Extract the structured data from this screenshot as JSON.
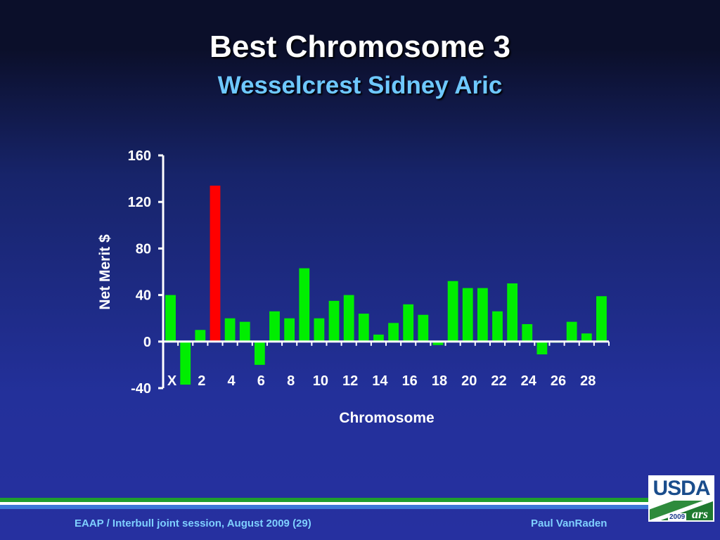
{
  "slide": {
    "title": "Best Chromosome 3",
    "subtitle": "Wesselcrest Sidney Aric",
    "footer_left": "EAAP / Interbull joint session, August 2009 (29)",
    "footer_right": "Paul VanRaden"
  },
  "logo": {
    "text": "USDA",
    "year": "2009",
    "mark": "ars"
  },
  "colors": {
    "bar": "#00ee00",
    "highlight": "#ff0000",
    "stripe_green": "#1e9e2e",
    "stripe_white": "#ffffff",
    "stripe_blue": "#3c78d8"
  },
  "chart_data": {
    "type": "bar",
    "xlabel": "Chromosome",
    "ylabel": "Net Merit $",
    "ylim": [
      -40,
      160
    ],
    "yticks": [
      -40,
      0,
      40,
      80,
      120,
      160
    ],
    "categories": [
      "X",
      "1",
      "2",
      "3",
      "4",
      "5",
      "6",
      "7",
      "8",
      "9",
      "10",
      "11",
      "12",
      "13",
      "14",
      "15",
      "16",
      "17",
      "18",
      "19",
      "20",
      "21",
      "22",
      "23",
      "24",
      "25",
      "26",
      "27",
      "28",
      "29"
    ],
    "x_tick_labels": [
      "X",
      "2",
      "4",
      "6",
      "8",
      "10",
      "12",
      "14",
      "16",
      "18",
      "20",
      "22",
      "24",
      "26",
      "28"
    ],
    "values": [
      40,
      -37,
      10,
      134,
      20,
      17,
      -20,
      26,
      20,
      63,
      20,
      35,
      40,
      24,
      6,
      16,
      32,
      23,
      -3,
      52,
      46,
      46,
      26,
      50,
      15,
      -11,
      0,
      17,
      7,
      39
    ],
    "highlight_category": "3",
    "grid": false,
    "legend": "none"
  }
}
